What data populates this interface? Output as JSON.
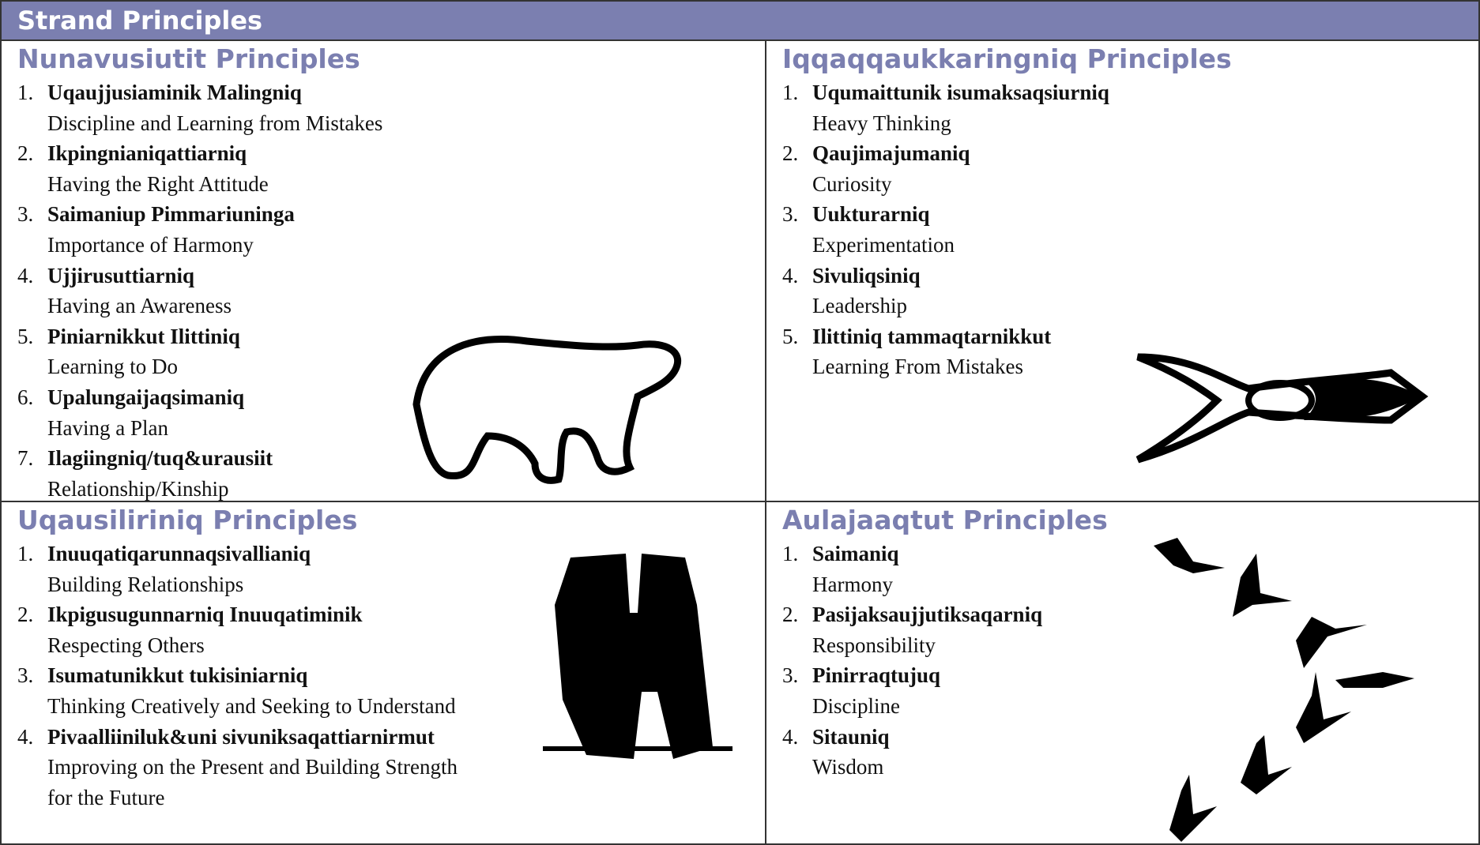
{
  "header": {
    "title": "Strand Principles"
  },
  "quadrants": [
    {
      "title": "Nunavusiutit Principles",
      "items": [
        {
          "number": "1.",
          "name": "Uqaujjusiaminik Malingniq",
          "description": "Discipline and Learning from Mistakes"
        },
        {
          "number": "2.",
          "name": "Ikpingnianiqattiarniq",
          "description": "Having the Right Attitude"
        },
        {
          "number": "3.",
          "name": "Saimaniup Pimmariuninga",
          "description": "Importance of Harmony"
        },
        {
          "number": "4.",
          "name": "Ujjirusuttiarniq",
          "description": "Having an Awareness"
        },
        {
          "number": "5.",
          "name": "Piniarnikkut Ilittiniq",
          "description": "Learning to Do"
        },
        {
          "number": "6.",
          "name": "Upalungaijaqsimaniq",
          "description": "Having a Plan"
        },
        {
          "number": "7.",
          "name": "Ilagiingniq/tuq&urausiit",
          "description": "Relationship/Kinship"
        }
      ]
    },
    {
      "title": "Iqqaqqaukkaringniq Principles",
      "items": [
        {
          "number": "1.",
          "name": "Uqumaittunik isumaksaqsiurniq",
          "description": "Heavy Thinking"
        },
        {
          "number": "2.",
          "name": "Qaujimajumaniq",
          "description": "Curiosity"
        },
        {
          "number": "3.",
          "name": "Uukturarniq",
          "description": "Experimentation"
        },
        {
          "number": "4.",
          "name": "Sivuliqsiniq",
          "description": "Leadership"
        },
        {
          "number": "5.",
          "name": "Ilittiniq tammaqtarnikkut",
          "description": "Learning From Mistakes"
        }
      ]
    },
    {
      "title": "Uqausiliriniq Principles",
      "items": [
        {
          "number": "1.",
          "name": "Inuuqatiqarunnaqsivallianiq",
          "description": "Building Relationships"
        },
        {
          "number": "2.",
          "name": "Ikpigusugunnarniq Inuuqatiminik",
          "description": "Respecting Others"
        },
        {
          "number": "3.",
          "name": "Isumatunikkut tukisiniarniq",
          "description": "Thinking Creatively and Seeking to Understand"
        },
        {
          "number": "4.",
          "name": "Pivaalliiniluk&uni sivuniksaqattiarnirmut",
          "description": "Improving on the Present and Building Strength for the Future"
        }
      ]
    },
    {
      "title": "Aulajaaqtut Principles",
      "items": [
        {
          "number": "1.",
          "name": "Saimaniq",
          "description": "Harmony"
        },
        {
          "number": "2.",
          "name": "Pasijaksaujjutiksaqarniq",
          "description": "Responsibility"
        },
        {
          "number": "3.",
          "name": "Pinirraqtujuq",
          "description": "Discipline"
        },
        {
          "number": "4.",
          "name": "Sitauniq",
          "description": "Wisdom"
        }
      ]
    }
  ]
}
